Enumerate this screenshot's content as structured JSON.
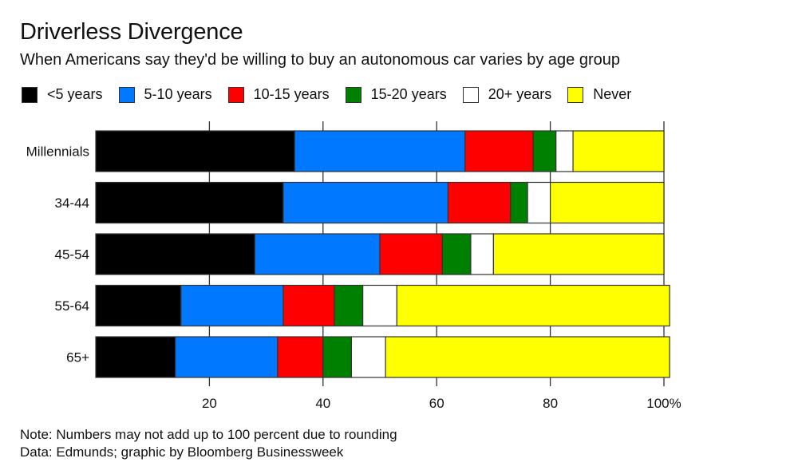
{
  "chart_data": {
    "type": "bar",
    "orientation": "horizontal",
    "stacked": true,
    "title": "Driverless Divergence",
    "subtitle": "When Americans say they'd be willing to buy an autonomous car varies by age group",
    "categories": [
      "Millennials",
      "34-44",
      "45-54",
      "55-64",
      "65+"
    ],
    "series": [
      {
        "name": "<5 years",
        "color": "#000000",
        "values": [
          35,
          33,
          28,
          15,
          14
        ]
      },
      {
        "name": "5-10 years",
        "color": "#0078FF",
        "values": [
          30,
          29,
          22,
          18,
          18
        ]
      },
      {
        "name": "10-15 years",
        "color": "#FF0000",
        "values": [
          12,
          11,
          11,
          9,
          8
        ]
      },
      {
        "name": "15-20 years",
        "color": "#008000",
        "values": [
          4,
          3,
          5,
          5,
          5
        ]
      },
      {
        "name": "20+ years",
        "color": "#FFFFFF",
        "values": [
          3,
          4,
          4,
          6,
          6
        ]
      },
      {
        "name": "Never",
        "color": "#FFFF00",
        "values": [
          16,
          20,
          30,
          48,
          50
        ]
      }
    ],
    "xlim": [
      0,
      100
    ],
    "xticks": [
      20,
      40,
      60,
      80,
      100
    ],
    "xtick_labels": [
      "20",
      "40",
      "60",
      "80",
      "100%"
    ],
    "xlabel": "",
    "ylabel": "",
    "grid": true,
    "legend_position": "top-left"
  },
  "notes": {
    "note": "Note: Numbers may not add up to 100 percent due to rounding",
    "source": "Data: Edmunds; graphic by Bloomberg Businessweek"
  }
}
